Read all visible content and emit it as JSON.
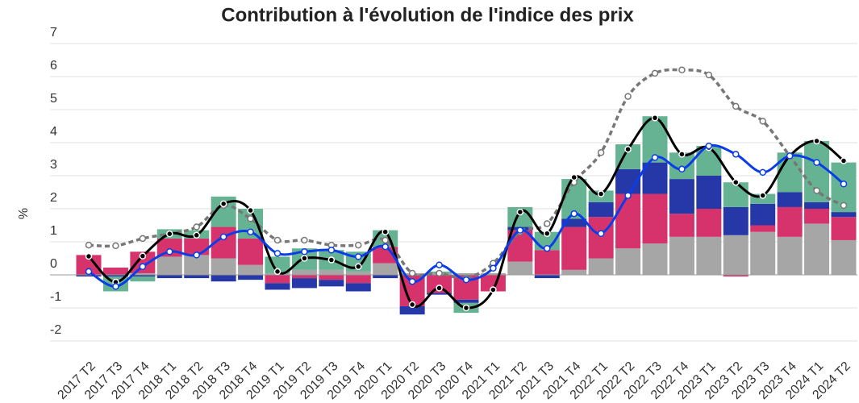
{
  "chart_data": {
    "type": "stacked-bar-line",
    "title": "Contribution à l'évolution de l'indice des prix",
    "ylabel": "%",
    "categories": [
      "2017 T2",
      "2017 T3",
      "2017 T4",
      "2018 T1",
      "2018 T2",
      "2018 T3",
      "2018 T4",
      "2019 T1",
      "2019 T2",
      "2019 T3",
      "2019 T4",
      "2020 T1",
      "2020 T2",
      "2020 T3",
      "2020 T4",
      "2021 T1",
      "2021 T2",
      "2021 T3",
      "2021 T4",
      "2022 T1",
      "2022 T2",
      "2022 T3",
      "2022 T4",
      "2023 T1",
      "2023 T2",
      "2023 T3",
      "2023 T4",
      "2024 T1",
      "2024 T2"
    ],
    "ylim": [
      -2.5,
      7.5
    ],
    "yticks": [
      -2,
      -1,
      0,
      1,
      2,
      3,
      4,
      5,
      6,
      7
    ],
    "grid": true,
    "series": [
      {
        "color": "#a6a6a6",
        "kind": "bar",
        "values": [
          0,
          0,
          0.05,
          0.55,
          0.6,
          0.5,
          0.3,
          0.05,
          0.15,
          0.15,
          0.1,
          0.35,
          0.05,
          0.05,
          0.05,
          0.05,
          0.4,
          0,
          0.15,
          0.5,
          0.8,
          0.95,
          1.15,
          1.15,
          1.2,
          1.3,
          1.15,
          1.55,
          1.05
        ]
      },
      {
        "color": "#d6336c",
        "kind": "bar",
        "values": [
          0.6,
          0.22,
          0.65,
          0.55,
          0.5,
          0.95,
          0.8,
          -0.25,
          -0.1,
          -0.15,
          -0.25,
          0.5,
          -0.95,
          -0.55,
          -0.75,
          -0.5,
          0.95,
          0.75,
          1.3,
          1.25,
          1.65,
          1.5,
          0.7,
          0.85,
          -0.05,
          0.2,
          0.9,
          0.45,
          0.7
        ]
      },
      {
        "color": "#2638a8",
        "kind": "bar",
        "values": [
          -0.05,
          -0.05,
          -0.05,
          -0.1,
          -0.1,
          -0.2,
          -0.15,
          -0.2,
          -0.3,
          -0.2,
          -0.25,
          -0.1,
          -0.25,
          -0.05,
          -0.1,
          0,
          0.1,
          -0.1,
          0.25,
          0.45,
          0.75,
          0.95,
          1.05,
          1.0,
          0.85,
          0.65,
          0.45,
          0.2,
          0.15
        ]
      },
      {
        "color": "#66b394",
        "kind": "bar",
        "values": [
          0,
          -0.45,
          -0.15,
          0.28,
          0.25,
          0.92,
          0.9,
          0.5,
          0.65,
          0.6,
          0.6,
          0.5,
          0,
          0.05,
          -0.3,
          0,
          0.6,
          0.55,
          1.2,
          0.35,
          0.75,
          1.4,
          0.8,
          0.9,
          0.75,
          0.3,
          1.2,
          1.85,
          1.5
        ]
      },
      {
        "color": "#000000",
        "kind": "line",
        "values": [
          0.56,
          -0.22,
          0.57,
          1.24,
          1.2,
          2.15,
          1.95,
          0.1,
          0.5,
          0.45,
          0.25,
          1.3,
          -0.9,
          -0.4,
          -1.0,
          -0.45,
          1.9,
          1.25,
          2.95,
          2.45,
          3.8,
          4.75,
          3.65,
          3.85,
          2.8,
          2.4,
          3.6,
          4.05,
          3.45
        ]
      },
      {
        "color": "#0a3de8",
        "kind": "line",
        "values": [
          0.1,
          -0.35,
          0.25,
          0.7,
          0.6,
          1.15,
          1.3,
          0.65,
          0.7,
          0.75,
          0.55,
          0.85,
          -0.2,
          0.3,
          -0.15,
          0.2,
          1.35,
          0.8,
          1.85,
          1.25,
          2.4,
          3.55,
          3.2,
          3.9,
          3.65,
          3.1,
          3.6,
          3.4,
          2.75
        ]
      },
      {
        "color": "#777777",
        "kind": "dashed",
        "values": [
          0.9,
          0.88,
          1.1,
          1.25,
          1.45,
          2.1,
          1.7,
          1.05,
          1.05,
          0.9,
          0.9,
          1.05,
          0.05,
          0.05,
          -0.1,
          0.35,
          1.3,
          1.55,
          2.8,
          3.7,
          5.4,
          6.1,
          6.2,
          6.05,
          5.1,
          4.65,
          3.6,
          2.55,
          2.1
        ]
      }
    ]
  }
}
